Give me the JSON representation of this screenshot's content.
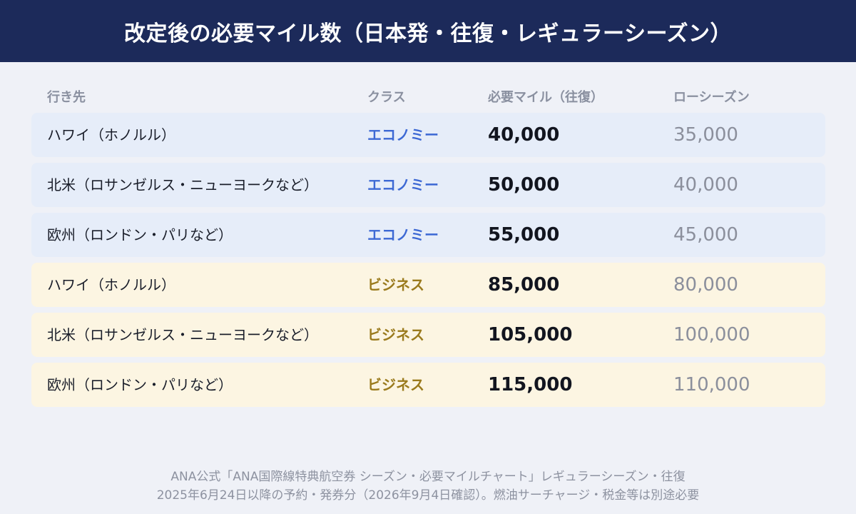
{
  "header": {
    "title": "改定後の必要マイル数（日本発・往復・レギュラーシーズン）"
  },
  "columns": {
    "destination": "行き先",
    "class": "クラス",
    "required_miles": "必要マイル（往復）",
    "low_season": "ローシーズン"
  },
  "rows": [
    {
      "destination": "ハワイ（ホノルル）",
      "class": "エコノミー",
      "required_miles": "40,000",
      "low_season": "35,000"
    },
    {
      "destination": "北米（ロサンゼルス・ニューヨークなど）",
      "class": "エコノミー",
      "required_miles": "50,000",
      "low_season": "40,000"
    },
    {
      "destination": "欧州（ロンドン・パリなど）",
      "class": "エコノミー",
      "required_miles": "55,000",
      "low_season": "45,000"
    },
    {
      "destination": "ハワイ（ホノルル）",
      "class": "ビジネス",
      "required_miles": "85,000",
      "low_season": "80,000"
    },
    {
      "destination": "北米（ロサンゼルス・ニューヨークなど）",
      "class": "ビジネス",
      "required_miles": "105,000",
      "low_season": "100,000"
    },
    {
      "destination": "欧州（ロンドン・パリなど）",
      "class": "ビジネス",
      "required_miles": "115,000",
      "low_season": "110,000"
    }
  ],
  "colors": {
    "header_bg": "#1c2a5a",
    "economy_row_bg": "#e6edf9",
    "business_row_bg": "#fcf5e2",
    "economy_accent": "#3c68d4",
    "business_accent": "#9a7a1c"
  },
  "footer": {
    "line1": "ANA公式「ANA国際線特典航空券 シーズン・必要マイルチャート」レギュラーシーズン・往復",
    "line2": "2025年6月24日以降の予約・発券分（2026年9月4日確認）。燃油サーチャージ・税金等は別途必要"
  }
}
